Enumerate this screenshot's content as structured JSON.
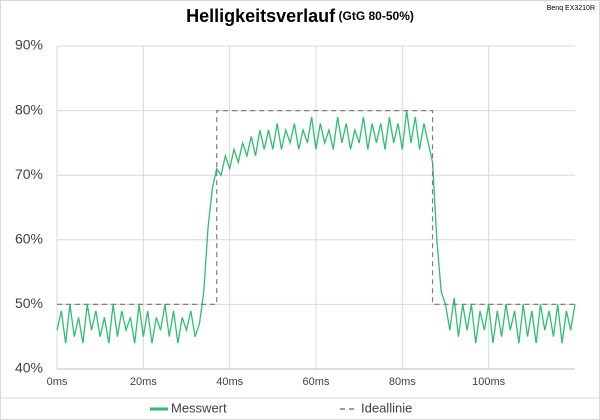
{
  "chart_data": {
    "type": "line",
    "title": "Helligkeitsverlauf",
    "subtitle": "(GtG 80-50%)",
    "annotation": "Benq EX3210R",
    "xlim": [
      0,
      120
    ],
    "ylim": [
      40,
      90
    ],
    "xticks": [
      {
        "value": 0,
        "label": "0ms"
      },
      {
        "value": 20,
        "label": "20ms"
      },
      {
        "value": 40,
        "label": "40ms"
      },
      {
        "value": 60,
        "label": "60ms"
      },
      {
        "value": 80,
        "label": "80ms"
      },
      {
        "value": 100,
        "label": "100ms"
      }
    ],
    "yticks": [
      {
        "value": 40,
        "label": "40%"
      },
      {
        "value": 50,
        "label": "50%"
      },
      {
        "value": 60,
        "label": "60%"
      },
      {
        "value": 70,
        "label": "70%"
      },
      {
        "value": 80,
        "label": "80%"
      },
      {
        "value": 90,
        "label": "90%"
      }
    ],
    "grid": true,
    "legend": "bottom",
    "series": [
      {
        "name": "Messwert",
        "color": "#2ebf6e",
        "line_style": "solid",
        "x": [
          0,
          1,
          2,
          3,
          4,
          5,
          6,
          7,
          8,
          9,
          10,
          11,
          12,
          13,
          14,
          15,
          16,
          17,
          18,
          19,
          20,
          21,
          22,
          23,
          24,
          25,
          26,
          27,
          28,
          29,
          30,
          31,
          32,
          33,
          34,
          35,
          36,
          37,
          38,
          39,
          40,
          41,
          42,
          43,
          44,
          45,
          46,
          47,
          48,
          49,
          50,
          51,
          52,
          53,
          54,
          55,
          56,
          57,
          58,
          59,
          60,
          61,
          62,
          63,
          64,
          65,
          66,
          67,
          68,
          69,
          70,
          71,
          72,
          73,
          74,
          75,
          76,
          77,
          78,
          79,
          80,
          81,
          82,
          83,
          84,
          85,
          86,
          87,
          88,
          89,
          90,
          91,
          92,
          93,
          94,
          95,
          96,
          97,
          98,
          99,
          100,
          101,
          102,
          103,
          104,
          105,
          106,
          107,
          108,
          109,
          110,
          111,
          112,
          113,
          114,
          115,
          116,
          117,
          118,
          119,
          120
        ],
        "values": [
          46,
          49,
          44,
          50,
          45,
          48,
          44,
          50,
          46,
          49,
          45,
          48,
          44,
          50,
          45,
          49,
          46,
          48,
          44,
          50,
          45,
          49,
          44,
          48,
          46,
          50,
          45,
          49,
          44,
          48,
          46,
          49,
          45,
          47,
          52,
          62,
          68,
          71,
          70,
          73,
          71,
          74,
          72,
          75,
          73,
          76,
          73,
          77,
          74,
          77,
          74,
          78,
          74,
          77,
          75,
          78,
          74,
          77,
          75,
          79,
          74,
          78,
          75,
          77,
          74,
          79,
          75,
          78,
          74,
          77,
          75,
          79,
          74,
          78,
          75,
          78,
          74,
          79,
          75,
          78,
          74,
          80,
          75,
          79,
          74,
          78,
          75,
          72,
          60,
          52,
          50,
          46,
          51,
          45,
          50,
          46,
          50,
          44,
          49,
          46,
          50,
          44,
          49,
          45,
          50,
          46,
          49,
          44,
          50,
          45,
          49,
          44,
          50,
          46,
          49,
          45,
          50,
          44,
          49,
          46,
          50
        ]
      },
      {
        "name": "Ideallinie",
        "color": "#7f7f7f",
        "line_style": "dashed",
        "x": [
          0,
          37,
          37,
          87,
          87,
          120
        ],
        "values": [
          50,
          50,
          80,
          80,
          50,
          50
        ]
      }
    ]
  }
}
